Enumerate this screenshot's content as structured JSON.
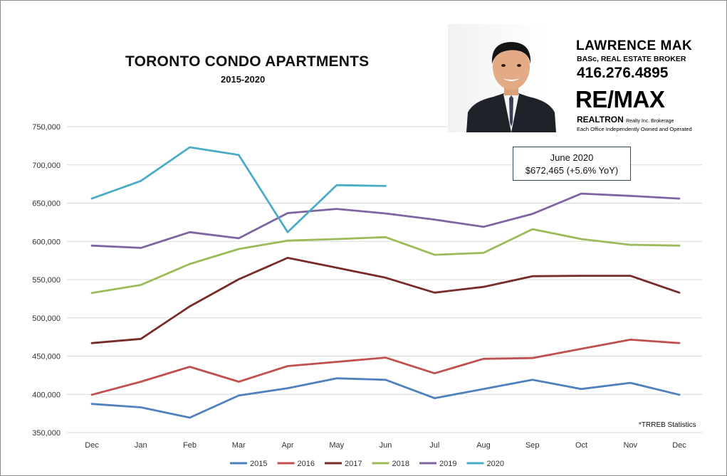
{
  "chart_data": {
    "type": "line",
    "title": "TORONTO CONDO APARTMENTS",
    "subtitle": "2015-2020",
    "categories": [
      "Dec",
      "Jan",
      "Feb",
      "Mar",
      "Apr",
      "May",
      "Jun",
      "Jul",
      "Aug",
      "Sep",
      "Oct",
      "Nov",
      "Dec"
    ],
    "y_ticks": [
      "350,000",
      "400,000",
      "450,000",
      "500,000",
      "550,000",
      "600,000",
      "650,000",
      "700,000",
      "750,000"
    ],
    "ylim": [
      350000,
      750000
    ],
    "grid": "horizontal",
    "legend_position": "bottom",
    "series": [
      {
        "name": "2015",
        "color": "#4f81bd",
        "values": [
          387500,
          383000,
          369500,
          398500,
          408000,
          421000,
          419000,
          395000,
          407000,
          419000,
          407000,
          415000,
          399500
        ]
      },
      {
        "name": "2016",
        "color": "#c0504d",
        "values": [
          399500,
          416500,
          436000,
          416500,
          437000,
          442500,
          448000,
          427500,
          446500,
          447500,
          459500,
          471500,
          467000
        ]
      },
      {
        "name": "2017",
        "color": "#772c2a",
        "values": [
          467000,
          472500,
          515000,
          550500,
          578500,
          565500,
          552500,
          533000,
          540500,
          554500,
          555000,
          555000,
          533000
        ]
      },
      {
        "name": "2018",
        "color": "#9bbb59",
        "values": [
          532500,
          543000,
          570500,
          590000,
          601000,
          603000,
          605500,
          582500,
          585000,
          616000,
          603000,
          595500,
          594500
        ]
      },
      {
        "name": "2019",
        "color": "#8064a2",
        "values": [
          594500,
          591500,
          612000,
          604000,
          637000,
          642500,
          636500,
          628500,
          619000,
          636000,
          662500,
          659500,
          656000
        ]
      },
      {
        "name": "2020",
        "color": "#4bacc6",
        "values": [
          656000,
          679000,
          723000,
          713000,
          612000,
          673500,
          672465,
          null,
          null,
          null,
          null,
          null,
          null
        ]
      }
    ]
  },
  "callout": {
    "line1": "June 2020",
    "line2": "$672,465  (+5.6% YoY)"
  },
  "source_note": "*TRREB Statistics",
  "agent": {
    "name": "LAWRENCE MAK",
    "credentials": "BASc, REAL ESTATE BROKER",
    "phone": "416.276.4895",
    "brand": "RE/MAX",
    "brand_sub": "REALTRON",
    "brand_sub_small": "Realty Inc. Brokerage",
    "tagline": "Each Office Independently Owned and Operated"
  }
}
